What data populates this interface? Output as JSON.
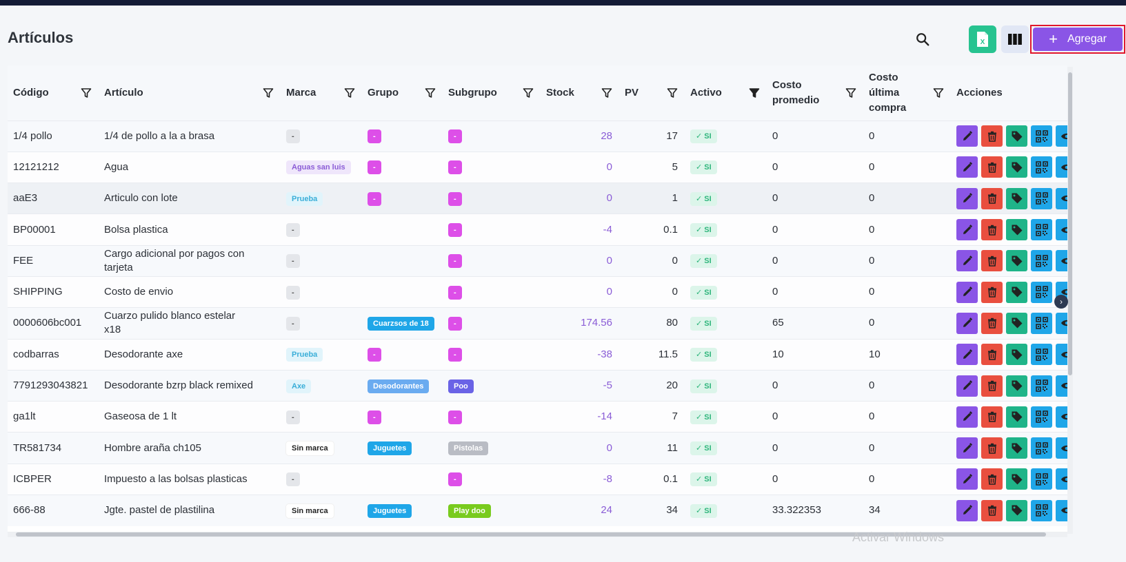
{
  "page": {
    "title": "Artículos"
  },
  "toolbar": {
    "add_label": "Agregar",
    "add_icon": "plus-icon",
    "excel_icon": "excel-icon",
    "columns_icon": "columns-icon",
    "search_icon": "search-icon"
  },
  "colors": {
    "accent": "#8a55e6",
    "danger": "#e94f3f",
    "success": "#1fb489",
    "info": "#1fa6e8",
    "excel": "#27c390",
    "topbar": "#141b36"
  },
  "table": {
    "headers": {
      "codigo": "Código",
      "articulo": "Artículo",
      "marca": "Marca",
      "grupo": "Grupo",
      "subgrupo": "Subgrupo",
      "stock": "Stock",
      "pv": "PV",
      "activo": "Activo",
      "costo_promedio": "Costo promedio",
      "costo_ultima": "Costo última compra",
      "acciones": "Acciones"
    },
    "rows": [
      {
        "codigo": "1/4 pollo",
        "articulo": "1/4 de pollo a la a brasa",
        "marca": "-",
        "grupo": "-",
        "subgrupo": "-",
        "stock": "28",
        "pv": "17",
        "activo": "SI",
        "costo_promedio": "0",
        "costo_ultima": "0"
      },
      {
        "codigo": "12121212",
        "articulo": "Agua",
        "marca": "Aguas san luis",
        "grupo": "-",
        "subgrupo": "-",
        "stock": "0",
        "pv": "5",
        "activo": "SI",
        "costo_promedio": "0",
        "costo_ultima": "0"
      },
      {
        "codigo": "aaE3",
        "articulo": "Articulo con lote",
        "marca": "Prueba",
        "grupo": "-",
        "subgrupo": "-",
        "stock": "0",
        "pv": "1",
        "activo": "SI",
        "costo_promedio": "0",
        "costo_ultima": "0"
      },
      {
        "codigo": "BP00001",
        "articulo": "Bolsa plastica",
        "marca": "-",
        "grupo": "",
        "subgrupo": "-",
        "stock": "-4",
        "pv": "0.1",
        "activo": "SI",
        "costo_promedio": "0",
        "costo_ultima": "0"
      },
      {
        "codigo": "FEE",
        "articulo": "Cargo adicional por pagos con tarjeta",
        "marca": "-",
        "grupo": "",
        "subgrupo": "-",
        "stock": "0",
        "pv": "0",
        "activo": "SI",
        "costo_promedio": "0",
        "costo_ultima": "0"
      },
      {
        "codigo": "SHIPPING",
        "articulo": "Costo de envio",
        "marca": "-",
        "grupo": "",
        "subgrupo": "-",
        "stock": "0",
        "pv": "0",
        "activo": "SI",
        "costo_promedio": "0",
        "costo_ultima": "0"
      },
      {
        "codigo": "0000606bc001",
        "articulo": "Cuarzo pulido blanco estelar x18",
        "marca": "-",
        "grupo": "Cuarzsos de 18",
        "subgrupo": "-",
        "stock": "174.56",
        "pv": "80",
        "activo": "SI",
        "costo_promedio": "65",
        "costo_ultima": "0"
      },
      {
        "codigo": "codbarras",
        "articulo": "Desodorante axe",
        "marca": "Prueba",
        "grupo": "-",
        "subgrupo": "-",
        "stock": "-38",
        "pv": "11.5",
        "activo": "SI",
        "costo_promedio": "10",
        "costo_ultima": "10"
      },
      {
        "codigo": "7791293043821",
        "articulo": "Desodorante bzrp black remixed",
        "marca": "Axe",
        "grupo": "Desodorantes",
        "subgrupo": "Poo",
        "stock": "-5",
        "pv": "20",
        "activo": "SI",
        "costo_promedio": "0",
        "costo_ultima": "0"
      },
      {
        "codigo": "ga1lt",
        "articulo": "Gaseosa de 1 lt",
        "marca": "-",
        "grupo": "-",
        "subgrupo": "-",
        "stock": "-14",
        "pv": "7",
        "activo": "SI",
        "costo_promedio": "0",
        "costo_ultima": "0"
      },
      {
        "codigo": "TR581734",
        "articulo": "Hombre araña ch105",
        "marca": "Sin marca",
        "grupo": "Juguetes",
        "subgrupo": "Pistolas",
        "stock": "0",
        "pv": "11",
        "activo": "SI",
        "costo_promedio": "0",
        "costo_ultima": "0"
      },
      {
        "codigo": "ICBPER",
        "articulo": "Impuesto a las bolsas plasticas",
        "marca": "-",
        "grupo": "",
        "subgrupo": "-",
        "stock": "-8",
        "pv": "0.1",
        "activo": "SI",
        "costo_promedio": "0",
        "costo_ultima": "0"
      },
      {
        "codigo": "666-88",
        "articulo": "Jgte. pastel de plastilina",
        "marca": "Sin marca",
        "grupo": "Juguetes",
        "subgrupo": "Play doo",
        "stock": "24",
        "pv": "34",
        "activo": "SI",
        "costo_promedio": "33.322353",
        "costo_ultima": "34"
      }
    ]
  },
  "watermark": "Activar Windows"
}
